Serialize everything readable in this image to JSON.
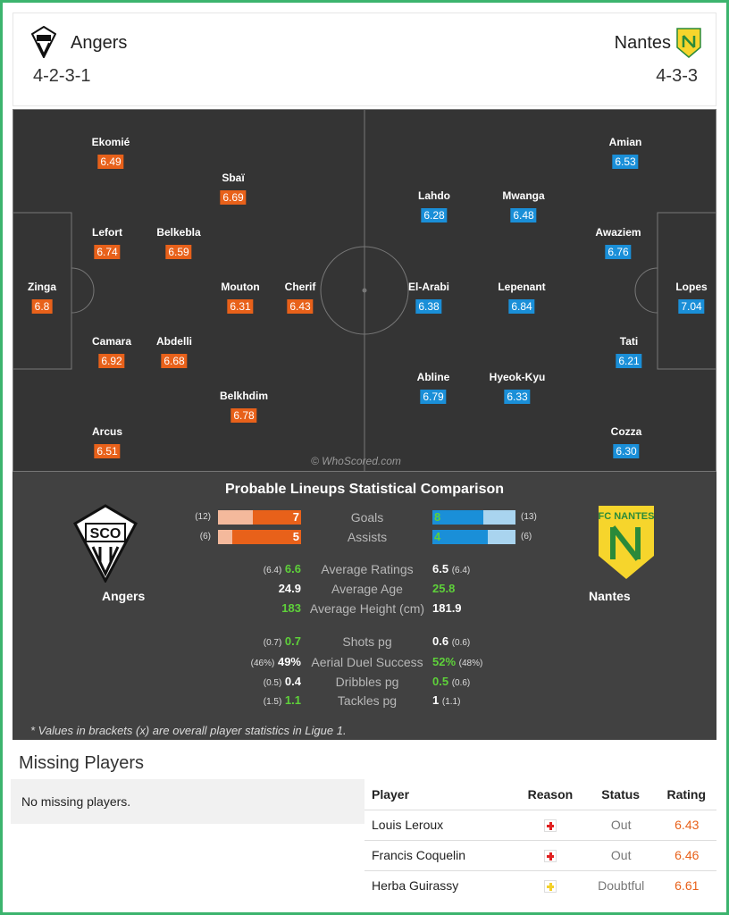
{
  "header": {
    "home": {
      "name": "Angers",
      "formation": "4-2-3-1"
    },
    "away": {
      "name": "Nantes",
      "formation": "4-3-3"
    }
  },
  "pitch": {
    "home_color": "#e8611a",
    "away_color": "#1a8fd8",
    "home_players": [
      {
        "name": "Ekomié",
        "rating": "6.49"
      },
      {
        "name": "Sbaï",
        "rating": "6.69"
      },
      {
        "name": "Lefort",
        "rating": "6.74"
      },
      {
        "name": "Belkebla",
        "rating": "6.59"
      },
      {
        "name": "Zinga",
        "rating": "6.8"
      },
      {
        "name": "Mouton",
        "rating": "6.31"
      },
      {
        "name": "Cherif",
        "rating": "6.43"
      },
      {
        "name": "Camara",
        "rating": "6.92"
      },
      {
        "name": "Abdelli",
        "rating": "6.68"
      },
      {
        "name": "Belkhdim",
        "rating": "6.78"
      },
      {
        "name": "Arcus",
        "rating": "6.51"
      }
    ],
    "away_players": [
      {
        "name": "Amian",
        "rating": "6.53"
      },
      {
        "name": "Lahdo",
        "rating": "6.28"
      },
      {
        "name": "Mwanga",
        "rating": "6.48"
      },
      {
        "name": "Awaziem",
        "rating": "6.76"
      },
      {
        "name": "El-Arabi",
        "rating": "6.38"
      },
      {
        "name": "Lepenant",
        "rating": "6.84"
      },
      {
        "name": "Lopes",
        "rating": "7.04"
      },
      {
        "name": "Tati",
        "rating": "6.21"
      },
      {
        "name": "Abline",
        "rating": "6.79"
      },
      {
        "name": "Hyeok-Kyu",
        "rating": "6.33"
      },
      {
        "name": "Cozza",
        "rating": "6.30"
      }
    ],
    "credit": "© WhoScored.com"
  },
  "comparison": {
    "title": "Probable Lineups Statistical Comparison",
    "home_name": "Angers",
    "away_name": "Nantes",
    "bars": [
      {
        "label": "Goals",
        "home": 7,
        "home_overall": {
          "value": 12,
          "label": "(12)"
        },
        "away": 8,
        "away_overall": {
          "value": 13,
          "label": "(13)"
        }
      },
      {
        "label": "Assists",
        "home": 5,
        "home_overall": {
          "value": 6,
          "label": "(6)"
        },
        "away": 4,
        "away_overall": {
          "value": 6,
          "label": "(6)"
        }
      }
    ],
    "stats": [
      {
        "label": "Average Ratings",
        "home": "6.6",
        "home_overall": "(6.4)",
        "away": "6.5",
        "away_overall": "(6.4)",
        "highlight": "home"
      },
      {
        "label": "Average Age",
        "home": "24.9",
        "away": "25.8",
        "highlight": "away"
      },
      {
        "label": "Average Height (cm)",
        "home": "183",
        "away": "181.9",
        "highlight": "home"
      },
      {
        "label": "Shots pg",
        "home": "0.7",
        "home_overall": "(0.7)",
        "away": "0.6",
        "away_overall": "(0.6)",
        "highlight": "home"
      },
      {
        "label": "Aerial Duel Success",
        "home": "49%",
        "home_overall": "(46%)",
        "away": "52%",
        "away_overall": "(48%)",
        "highlight": "away"
      },
      {
        "label": "Dribbles pg",
        "home": "0.4",
        "home_overall": "(0.5)",
        "away": "0.5",
        "away_overall": "(0.6)",
        "highlight": "away"
      },
      {
        "label": "Tackles pg",
        "home": "1.1",
        "home_overall": "(1.5)",
        "away": "1",
        "away_overall": "(1.1)",
        "highlight": "home"
      }
    ],
    "footnote": "* Values in brackets (x) are overall player statistics in Ligue 1."
  },
  "missing": {
    "title": "Missing Players",
    "home_note": "No missing players.",
    "columns": [
      "Player",
      "Reason",
      "Status",
      "Rating"
    ],
    "rows": [
      {
        "player": "Louis Leroux",
        "reason_color": "#e02020",
        "status": "Out",
        "rating": "6.43"
      },
      {
        "player": "Francis Coquelin",
        "reason_color": "#e02020",
        "status": "Out",
        "rating": "6.46"
      },
      {
        "player": "Herba Guirassy",
        "reason_color": "#f3d02a",
        "status": "Doubtful",
        "rating": "6.61"
      }
    ]
  }
}
